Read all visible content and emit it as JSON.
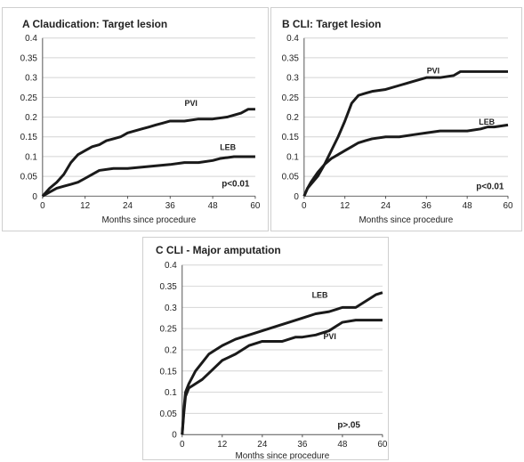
{
  "chart_data": [
    {
      "type": "line",
      "title": "A Claudication: Target lesion",
      "xlabel": "Months since procedure",
      "ylabel": "",
      "xlim": [
        0,
        60
      ],
      "ylim": [
        0,
        0.4
      ],
      "xticks": [
        0,
        12,
        24,
        36,
        48,
        60
      ],
      "yticks": [
        0,
        0.05,
        0.1,
        0.15,
        0.2,
        0.25,
        0.3,
        0.35,
        0.4
      ],
      "grid": true,
      "annotation": "p<0.01",
      "series": [
        {
          "name": "PVI",
          "x": [
            0,
            2,
            4,
            6,
            8,
            10,
            12,
            14,
            16,
            18,
            20,
            22,
            24,
            26,
            28,
            30,
            32,
            34,
            36,
            40,
            44,
            48,
            52,
            56,
            58,
            60
          ],
          "y": [
            0,
            0.02,
            0.035,
            0.055,
            0.085,
            0.105,
            0.115,
            0.125,
            0.13,
            0.14,
            0.145,
            0.15,
            0.16,
            0.165,
            0.17,
            0.175,
            0.18,
            0.185,
            0.19,
            0.19,
            0.195,
            0.195,
            0.2,
            0.21,
            0.22,
            0.22
          ]
        },
        {
          "name": "LEB",
          "x": [
            0,
            2,
            4,
            6,
            8,
            10,
            12,
            14,
            16,
            20,
            24,
            30,
            36,
            40,
            44,
            48,
            50,
            54,
            60
          ],
          "y": [
            0,
            0.01,
            0.02,
            0.025,
            0.03,
            0.035,
            0.045,
            0.055,
            0.065,
            0.07,
            0.07,
            0.075,
            0.08,
            0.085,
            0.085,
            0.09,
            0.095,
            0.1,
            0.1
          ]
        }
      ]
    },
    {
      "type": "line",
      "title": "B CLI: Target lesion",
      "xlabel": "Months since procedure",
      "ylabel": "",
      "xlim": [
        0,
        60
      ],
      "ylim": [
        0,
        0.4
      ],
      "xticks": [
        0,
        12,
        24,
        36,
        48,
        60
      ],
      "yticks": [
        0,
        0.05,
        0.1,
        0.15,
        0.2,
        0.25,
        0.3,
        0.35,
        0.4
      ],
      "grid": true,
      "annotation": "p<0.01",
      "series": [
        {
          "name": "PVI",
          "x": [
            0,
            1,
            2,
            4,
            6,
            8,
            10,
            12,
            14,
            16,
            18,
            20,
            24,
            28,
            30,
            32,
            36,
            40,
            44,
            46,
            48,
            54,
            60
          ],
          "y": [
            0,
            0.02,
            0.03,
            0.05,
            0.08,
            0.115,
            0.15,
            0.19,
            0.235,
            0.255,
            0.26,
            0.265,
            0.27,
            0.28,
            0.285,
            0.29,
            0.3,
            0.3,
            0.305,
            0.315,
            0.315,
            0.315,
            0.315
          ]
        },
        {
          "name": "LEB",
          "x": [
            0,
            1,
            2,
            4,
            6,
            8,
            10,
            12,
            14,
            16,
            18,
            20,
            24,
            28,
            32,
            36,
            40,
            44,
            48,
            52,
            54,
            56,
            60
          ],
          "y": [
            0,
            0.02,
            0.035,
            0.06,
            0.08,
            0.095,
            0.105,
            0.115,
            0.125,
            0.135,
            0.14,
            0.145,
            0.15,
            0.15,
            0.155,
            0.16,
            0.165,
            0.165,
            0.165,
            0.17,
            0.175,
            0.175,
            0.18
          ]
        }
      ]
    },
    {
      "type": "line",
      "title": "C CLI - Major amputation",
      "xlabel": "Months since procedure",
      "ylabel": "",
      "xlim": [
        0,
        60
      ],
      "ylim": [
        0,
        0.4
      ],
      "xticks": [
        0,
        12,
        24,
        36,
        48,
        60
      ],
      "yticks": [
        0,
        0.05,
        0.1,
        0.15,
        0.2,
        0.25,
        0.3,
        0.35,
        0.4
      ],
      "grid": true,
      "annotation": "p>.05",
      "series": [
        {
          "name": "LEB",
          "x": [
            0,
            0.5,
            1,
            2,
            3,
            4,
            6,
            8,
            10,
            12,
            16,
            20,
            24,
            28,
            32,
            36,
            40,
            44,
            48,
            52,
            54,
            56,
            58,
            60
          ],
          "y": [
            0,
            0.06,
            0.1,
            0.12,
            0.135,
            0.15,
            0.17,
            0.19,
            0.2,
            0.21,
            0.225,
            0.235,
            0.245,
            0.255,
            0.265,
            0.275,
            0.285,
            0.29,
            0.3,
            0.3,
            0.31,
            0.32,
            0.33,
            0.335
          ]
        },
        {
          "name": "PVI",
          "x": [
            0,
            0.5,
            1,
            2,
            3,
            4,
            6,
            8,
            10,
            12,
            16,
            18,
            20,
            24,
            30,
            34,
            36,
            40,
            44,
            46,
            48,
            52,
            56,
            60
          ],
          "y": [
            0,
            0.05,
            0.09,
            0.11,
            0.115,
            0.12,
            0.13,
            0.145,
            0.16,
            0.175,
            0.19,
            0.2,
            0.21,
            0.22,
            0.22,
            0.23,
            0.23,
            0.235,
            0.245,
            0.255,
            0.265,
            0.27,
            0.27,
            0.27
          ]
        }
      ]
    }
  ]
}
